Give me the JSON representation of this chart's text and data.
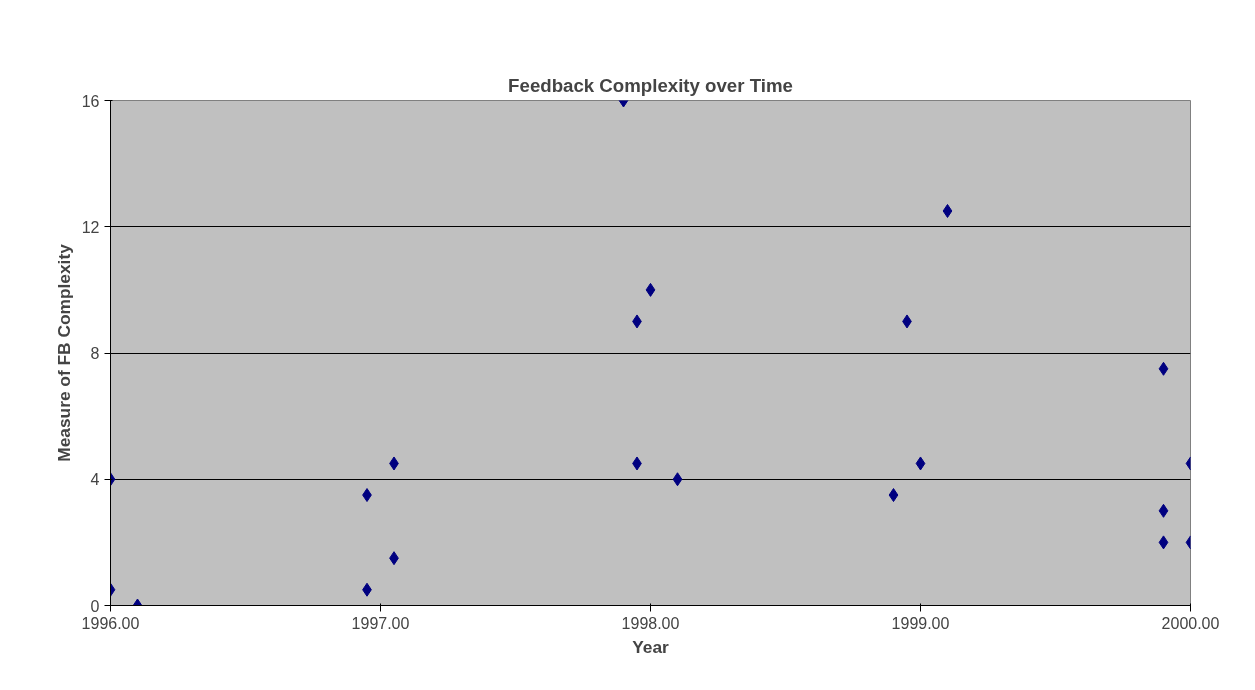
{
  "chart_data": {
    "type": "scatter",
    "title": "Feedback Complexity over Time",
    "xlabel": "Year",
    "ylabel": "Measure of FB Complexity",
    "x": [
      1996.0,
      1996.0,
      1996.1,
      1996.95,
      1996.95,
      1997.05,
      1997.05,
      1997.9,
      1997.95,
      1998.0,
      1997.95,
      1998.1,
      1998.9,
      1998.95,
      1999.0,
      1999.1,
      1999.9,
      1999.9,
      1999.9,
      2000.0,
      2000.0
    ],
    "series": [
      {
        "color": "#000080",
        "values": [
          4,
          0.5,
          0,
          3.5,
          0.5,
          4.5,
          1.5,
          16,
          9,
          10,
          4.5,
          4,
          3.5,
          9,
          4.5,
          12.5,
          7.5,
          3,
          2,
          4.5,
          2
        ]
      }
    ],
    "xlim": [
      1996,
      2000
    ],
    "ylim": [
      0,
      16
    ],
    "xticks": [
      {
        "value": 1996,
        "label": "1996.00"
      },
      {
        "value": 1997,
        "label": "1997.00"
      },
      {
        "value": 1998,
        "label": "1998.00"
      },
      {
        "value": 1999,
        "label": "1999.00"
      },
      {
        "value": 2000,
        "label": "2000.00"
      }
    ],
    "yticks": [
      0,
      4,
      8,
      12,
      16
    ],
    "grid": "y",
    "marker": "diamond"
  }
}
